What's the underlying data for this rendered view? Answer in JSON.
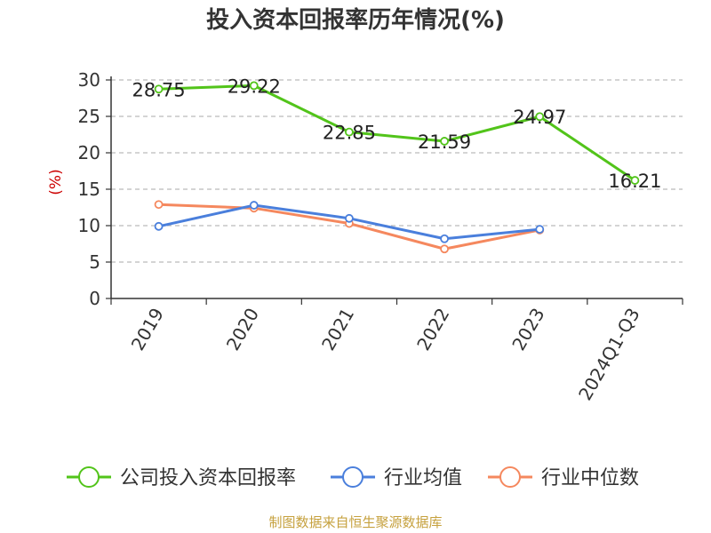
{
  "chart_data": {
    "type": "line",
    "title": "投入资本回报率历年情况(%)",
    "ylabel": "(%)",
    "xlabel": "",
    "categories": [
      "2019",
      "2020",
      "2021",
      "2022",
      "2023",
      "2024Q1-Q3"
    ],
    "ylim": [
      0,
      30
    ],
    "yticks": [
      0,
      5,
      10,
      15,
      20,
      25,
      30
    ],
    "grid": true,
    "legend_position": "bottom",
    "series": [
      {
        "name": "公司投入资本回报率",
        "color": "#52c41a",
        "values": [
          28.75,
          29.22,
          22.85,
          21.59,
          24.97,
          16.21
        ],
        "labels": [
          "28.75",
          "29.22",
          "22.85",
          "21.59",
          "24.97",
          "16.21"
        ]
      },
      {
        "name": "行业均值",
        "color": "#4a7fdc",
        "values": [
          9.9,
          12.8,
          11.0,
          8.2,
          9.5,
          null
        ]
      },
      {
        "name": "行业中位数",
        "color": "#f5885e",
        "values": [
          12.9,
          12.4,
          10.3,
          6.8,
          9.4,
          null
        ]
      }
    ]
  },
  "source": "制图数据来自恒生聚源数据库"
}
